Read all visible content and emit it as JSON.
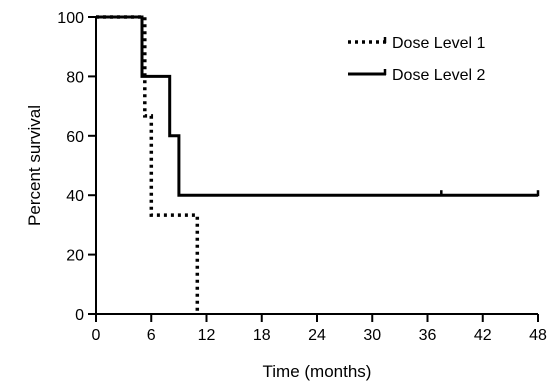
{
  "chart_data": {
    "type": "line",
    "subtype": "kaplan-meier step",
    "title": "",
    "xlabel": "Time (months)",
    "ylabel": "Percent survival",
    "xlim": [
      0,
      48
    ],
    "ylim": [
      0,
      100
    ],
    "xticks": [
      0,
      6,
      12,
      18,
      24,
      30,
      36,
      42,
      48
    ],
    "yticks": [
      0,
      20,
      40,
      60,
      80,
      100
    ],
    "grid": false,
    "legend_position": "top-right",
    "series": [
      {
        "name": "Dose Level 1",
        "style": "dotted",
        "color": "#000000",
        "steps": [
          [
            0,
            100
          ],
          [
            5.3,
            100
          ],
          [
            5.3,
            66.7
          ],
          [
            6,
            66.7
          ],
          [
            6,
            33.3
          ],
          [
            11,
            33.3
          ],
          [
            11,
            0
          ]
        ],
        "censors": []
      },
      {
        "name": "Dose Level 2",
        "style": "solid",
        "color": "#000000",
        "steps": [
          [
            0,
            100
          ],
          [
            5,
            100
          ],
          [
            5,
            80
          ],
          [
            8,
            80
          ],
          [
            8,
            60
          ],
          [
            9,
            60
          ],
          [
            9,
            40
          ],
          [
            48,
            40
          ]
        ],
        "censors": [
          [
            37.5,
            40
          ],
          [
            48,
            40
          ]
        ]
      }
    ]
  }
}
